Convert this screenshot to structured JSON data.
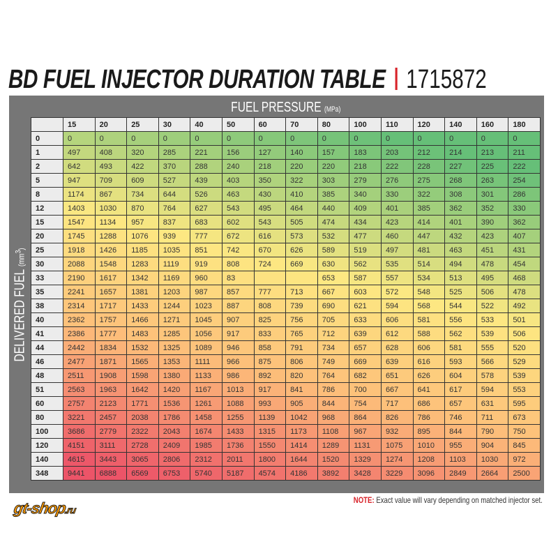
{
  "title": {
    "main": "BD FUEL INJECTOR DURATION TABLE",
    "part_number": "1715872"
  },
  "watermark": {
    "text": "gt-shop",
    "suffix": ".ru"
  },
  "note": {
    "label": "NOTE:",
    "text": "Exact value will vary depending on matched injector set."
  },
  "colors": {
    "accent": "#d8232a",
    "frame": "#767676",
    "low": "#6cc07a",
    "mid": "#fde882",
    "high": "#ee5a6a"
  },
  "chart_data": {
    "type": "heatmap",
    "title": "BD FUEL INJECTOR DURATION TABLE",
    "xlabel": "FUEL PRESSURE",
    "xunit": "(MPa)",
    "ylabel": "DELIVERED FUEL",
    "yunit": "(mm",
    "yunit_sup": "3",
    "yunit_close": ")",
    "x": [
      "15",
      "20",
      "25",
      "30",
      "40",
      "50",
      "60",
      "70",
      "80",
      "100",
      "110",
      "120",
      "140",
      "160",
      "180"
    ],
    "y": [
      "0",
      "1",
      "2",
      "5",
      "8",
      "12",
      "15",
      "20",
      "25",
      "30",
      "33",
      "35",
      "38",
      "40",
      "41",
      "44",
      "46",
      "48",
      "51",
      "60",
      "80",
      "100",
      "120",
      "140",
      "348"
    ],
    "values": [
      [
        "0",
        "0",
        "0",
        "0",
        "0",
        "0",
        "0",
        "0",
        "0",
        "0",
        "0",
        "0",
        "0",
        "0",
        "0"
      ],
      [
        "497",
        "408",
        "320",
        "285",
        "221",
        "156",
        "127",
        "140",
        "157",
        "183",
        "203",
        "212",
        "214",
        "213",
        "211"
      ],
      [
        "642",
        "493",
        "422",
        "370",
        "288",
        "240",
        "218",
        "220",
        "220",
        "218",
        "222",
        "228",
        "227",
        "225",
        "222"
      ],
      [
        "947",
        "709",
        "609",
        "527",
        "439",
        "403",
        "350",
        "322",
        "303",
        "279",
        "276",
        "275",
        "268",
        "263",
        "254"
      ],
      [
        "1174",
        "867",
        "734",
        "644",
        "526",
        "463",
        "430",
        "410",
        "385",
        "340",
        "330",
        "322",
        "308",
        "301",
        "286"
      ],
      [
        "1403",
        "1030",
        "870",
        "764",
        "627",
        "543",
        "495",
        "464",
        "440",
        "409",
        "401",
        "385",
        "362",
        "352",
        "330"
      ],
      [
        "1547",
        "1134",
        "957",
        "837",
        "683",
        "602",
        "543",
        "505",
        "474",
        "434",
        "423",
        "414",
        "401",
        "390",
        "362"
      ],
      [
        "1745",
        "1288",
        "1076",
        "939",
        "777",
        "672",
        "616",
        "573",
        "532",
        "477",
        "460",
        "447",
        "432",
        "423",
        "407"
      ],
      [
        "1918",
        "1426",
        "1185",
        "1035",
        "851",
        "742",
        "670",
        "626",
        "589",
        "519",
        "497",
        "481",
        "463",
        "451",
        "431"
      ],
      [
        "2088",
        "1548",
        "1283",
        "1119",
        "919",
        "808",
        "724",
        "669",
        "630",
        "562",
        "535",
        "514",
        "494",
        "478",
        "454"
      ],
      [
        "2190",
        "1617",
        "1342",
        "1169",
        "960",
        "83",
        "",
        "",
        "653",
        "587",
        "557",
        "534",
        "513",
        "495",
        "468"
      ],
      [
        "2241",
        "1657",
        "1381",
        "1203",
        "987",
        "857",
        "777",
        "713",
        "667",
        "603",
        "572",
        "548",
        "525",
        "506",
        "478"
      ],
      [
        "2314",
        "1717",
        "1433",
        "1244",
        "1023",
        "887",
        "808",
        "739",
        "690",
        "621",
        "594",
        "568",
        "544",
        "522",
        "492"
      ],
      [
        "2362",
        "1757",
        "1466",
        "1271",
        "1045",
        "907",
        "825",
        "756",
        "705",
        "633",
        "606",
        "581",
        "556",
        "533",
        "501"
      ],
      [
        "2386",
        "1777",
        "1483",
        "1285",
        "1056",
        "917",
        "833",
        "765",
        "712",
        "639",
        "612",
        "588",
        "562",
        "539",
        "506"
      ],
      [
        "2442",
        "1834",
        "1532",
        "1325",
        "1089",
        "946",
        "858",
        "791",
        "734",
        "657",
        "628",
        "606",
        "581",
        "555",
        "520"
      ],
      [
        "2477",
        "1871",
        "1565",
        "1353",
        "1111",
        "966",
        "875",
        "806",
        "749",
        "669",
        "639",
        "616",
        "593",
        "566",
        "529"
      ],
      [
        "2511",
        "1908",
        "1598",
        "1380",
        "1133",
        "986",
        "892",
        "820",
        "764",
        "682",
        "651",
        "626",
        "604",
        "578",
        "539"
      ],
      [
        "2563",
        "1963",
        "1642",
        "1420",
        "1167",
        "1013",
        "917",
        "841",
        "786",
        "700",
        "667",
        "641",
        "617",
        "594",
        "553"
      ],
      [
        "2757",
        "2123",
        "1771",
        "1536",
        "1261",
        "1088",
        "993",
        "905",
        "844",
        "754",
        "717",
        "686",
        "657",
        "631",
        "595"
      ],
      [
        "3221",
        "2457",
        "2038",
        "1786",
        "1458",
        "1255",
        "1139",
        "1042",
        "968",
        "864",
        "826",
        "786",
        "746",
        "711",
        "673"
      ],
      [
        "3686",
        "2779",
        "2322",
        "2043",
        "1674",
        "1433",
        "1315",
        "1173",
        "1108",
        "967",
        "932",
        "895",
        "844",
        "790",
        "750"
      ],
      [
        "4151",
        "3111",
        "2728",
        "2409",
        "1985",
        "1736",
        "1550",
        "1414",
        "1289",
        "1131",
        "1075",
        "1010",
        "955",
        "904",
        "845"
      ],
      [
        "4615",
        "3443",
        "3065",
        "2806",
        "2312",
        "2011",
        "1800",
        "1644",
        "1520",
        "1329",
        "1274",
        "1208",
        "1103",
        "1030",
        "972"
      ],
      [
        "9441",
        "6888",
        "6569",
        "6753",
        "5740",
        "5187",
        "4574",
        "4186",
        "3892",
        "3428",
        "3229",
        "3096",
        "2849",
        "2664",
        "2500"
      ]
    ]
  }
}
